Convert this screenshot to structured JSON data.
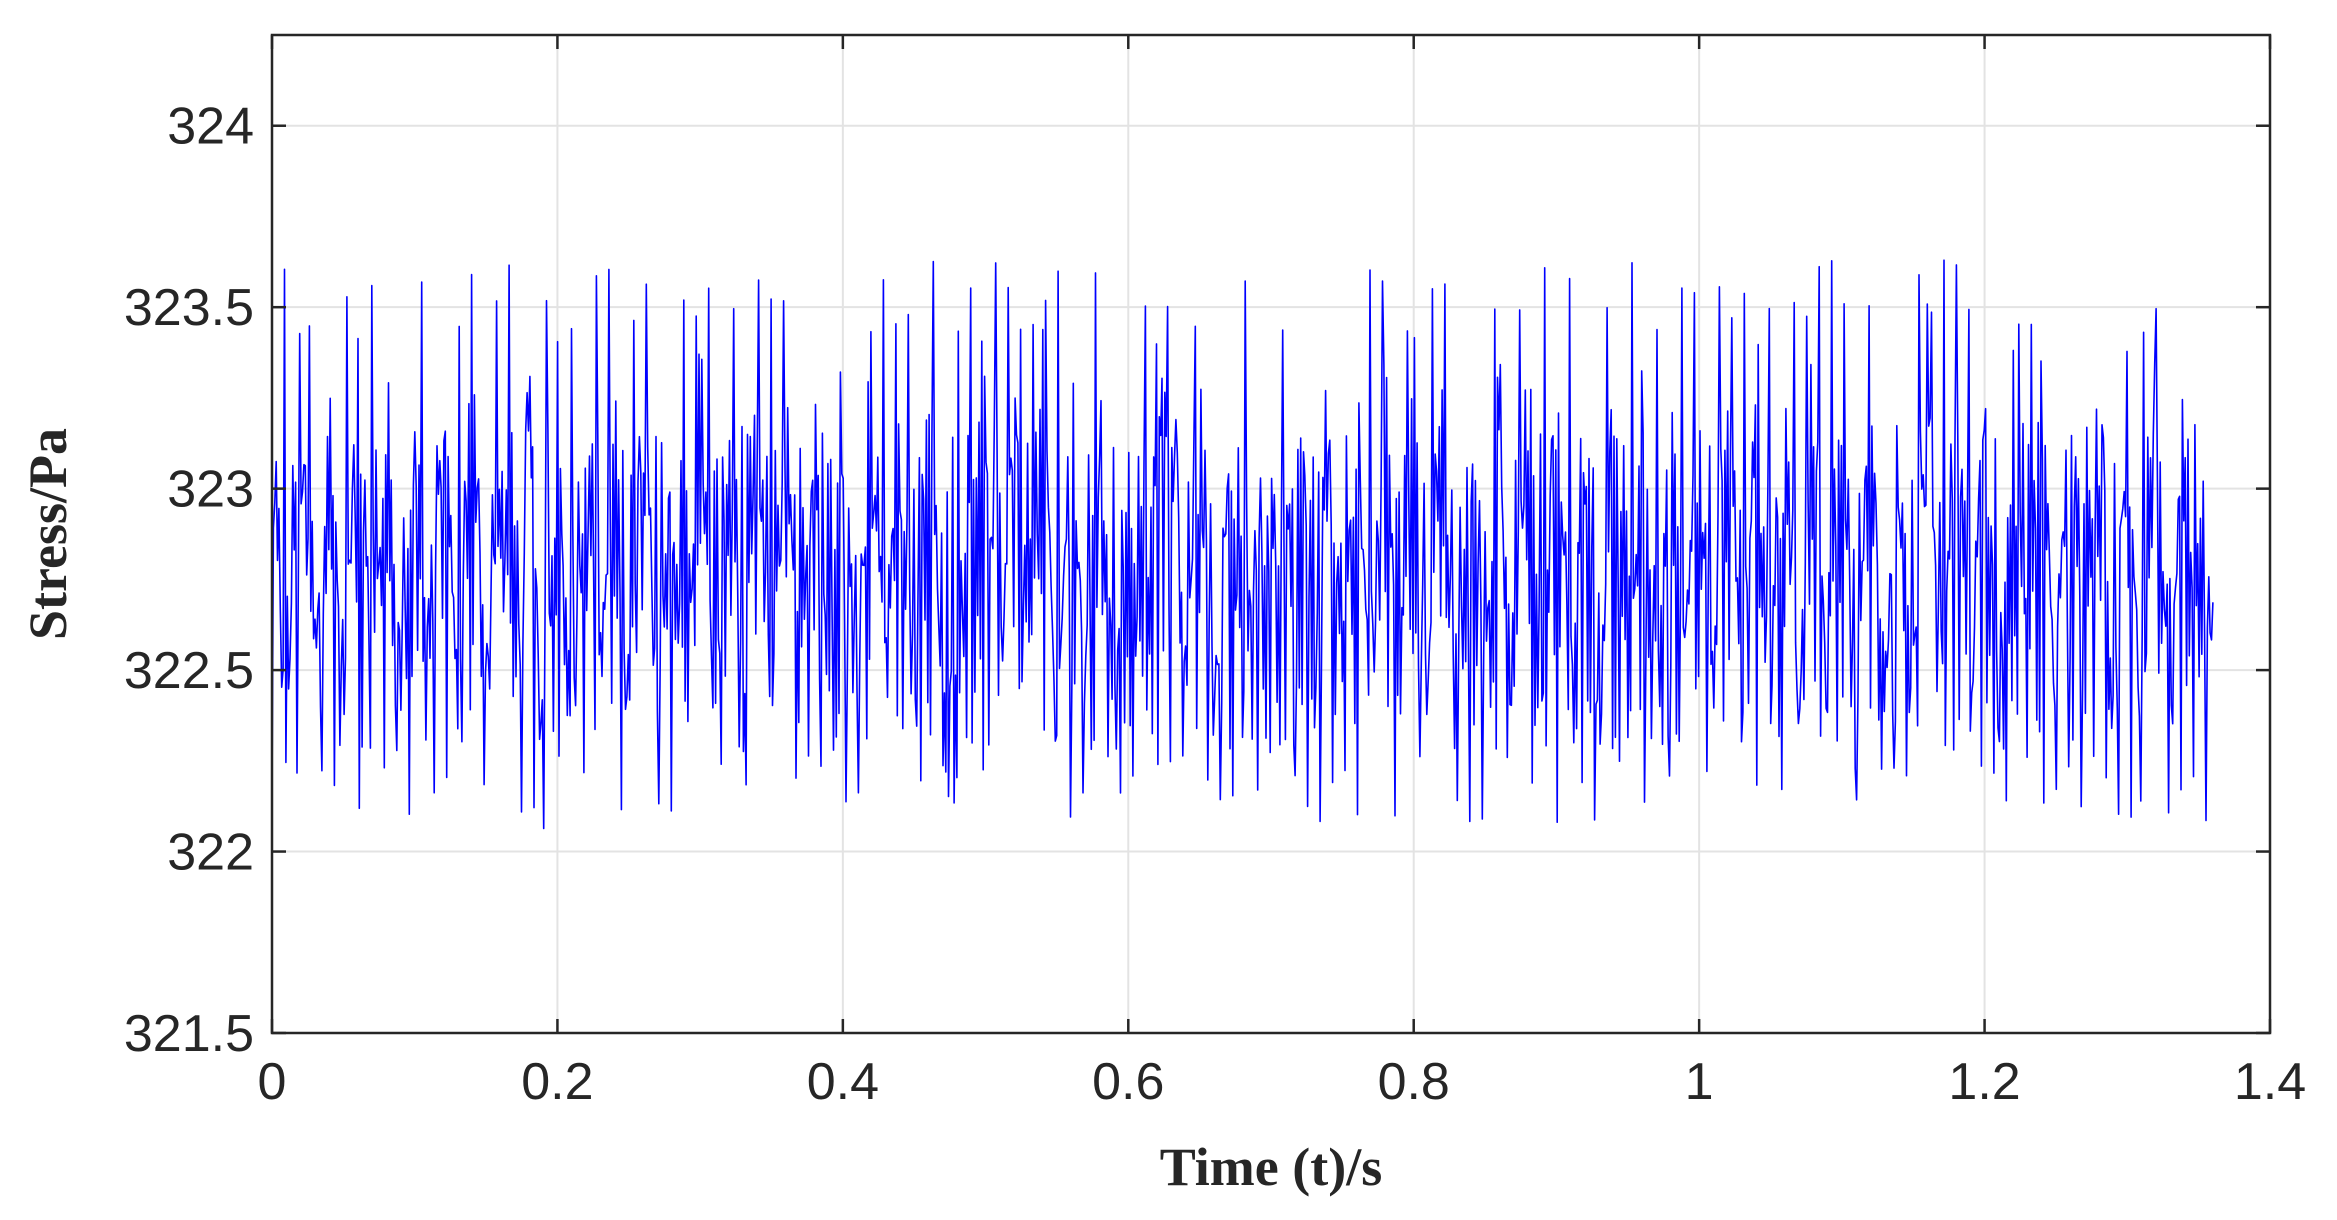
{
  "chart_data": {
    "type": "line",
    "title": "",
    "xlabel": "Time (t)/s",
    "ylabel": "Stress/Pa",
    "xlim": [
      0,
      1.4
    ],
    "ylim": [
      321.5,
      324.25
    ],
    "xticks": [
      0,
      0.2,
      0.4,
      0.6,
      0.8,
      1,
      1.2,
      1.4
    ],
    "xtick_labels": [
      "0",
      "0.2",
      "0.4",
      "0.6",
      "0.8",
      "1",
      "1.2",
      "1.4"
    ],
    "yticks": [
      321.5,
      322,
      322.5,
      323,
      323.5,
      324
    ],
    "ytick_labels": [
      "321.5",
      "322",
      "322.5",
      "323",
      "323.5",
      "324"
    ],
    "grid": true,
    "series": [
      {
        "color": "#0000ff",
        "x_range": [
          0,
          1.36
        ],
        "baseline": 322.73,
        "y_max": 323.69,
        "y_min": 322.0,
        "x": [
          0,
          0.01,
          0.02,
          0.03,
          0.04,
          0.05,
          0.06,
          0.07,
          0.08,
          0.09,
          0.1,
          0.11,
          0.12,
          0.13,
          0.14,
          0.15,
          0.16,
          0.17,
          0.18,
          0.19,
          0.2,
          0.21,
          0.22,
          0.23,
          0.24,
          0.25,
          0.26,
          0.27,
          0.28,
          0.29,
          0.3,
          0.31,
          0.32,
          0.33,
          0.34,
          0.35,
          0.36,
          0.37,
          0.38,
          0.39,
          0.4,
          0.41,
          0.42,
          0.43,
          0.44,
          0.45,
          0.46,
          0.47,
          0.48,
          0.49,
          0.5,
          0.51,
          0.52,
          0.53,
          0.54,
          0.55,
          0.56,
          0.57,
          0.58,
          0.59,
          0.6,
          0.61,
          0.62,
          0.63,
          0.64,
          0.65,
          0.66,
          0.67,
          0.68,
          0.69,
          0.7,
          0.71,
          0.72,
          0.73,
          0.74,
          0.75,
          0.76,
          0.77,
          0.78,
          0.79,
          0.8,
          0.81,
          0.82,
          0.83,
          0.84,
          0.85,
          0.86,
          0.87,
          0.88,
          0.89,
          0.9,
          0.91,
          0.92,
          0.93,
          0.94,
          0.95,
          0.96,
          0.97,
          0.98,
          0.99,
          1,
          1.01,
          1.02,
          1.03,
          1.04,
          1.05,
          1.06,
          1.07,
          1.08,
          1.09,
          1.1,
          1.11,
          1.12,
          1.13,
          1.14,
          1.15,
          1.16,
          1.17,
          1.18,
          1.19,
          1.2,
          1.21,
          1.22,
          1.23,
          1.24,
          1.25,
          1.26,
          1.27,
          1.28,
          1.29,
          1.3,
          1.31,
          1.32,
          1.33,
          1.34,
          1.35,
          1.36
        ],
        "y": [
          323.25,
          322.15,
          323.52,
          322.3,
          323.5,
          322.25,
          323.56,
          322.3,
          323.5,
          322.28,
          323.48,
          322.26,
          323.52,
          322.24,
          323.55,
          322.3,
          323.35,
          322.22,
          323.52,
          322.0,
          323.5,
          322.04,
          323.4,
          322.25,
          323.45,
          322.12,
          323.55,
          322.18,
          323.4,
          322.12,
          323.6,
          322.22,
          323.52,
          322.2,
          323.5,
          322.3,
          323.42,
          322.2,
          323.5,
          322.3,
          323.66,
          322.26,
          323.65,
          322.2,
          323.6,
          322.3,
          323.62,
          322.18,
          322.02,
          323.6,
          323.65,
          322.22,
          323.55,
          322.2,
          323.64,
          322.12,
          323.5,
          322.25,
          323.6,
          322.2,
          323.2,
          322.3,
          323.5,
          323.69,
          322.3,
          323.5,
          322.2,
          323.4,
          322.25,
          322.85,
          323.0,
          322.9,
          323.5,
          322.22,
          323.5,
          322.25,
          323.6,
          322.12,
          323.62,
          322.2,
          323.5,
          322.3,
          323.55,
          322.18,
          323.55,
          322.25,
          323.5,
          322.15,
          323.58,
          322.3,
          323.6,
          322.2,
          323.55,
          322.15,
          323.5,
          322.1,
          323.45,
          322.25,
          323.5,
          322.3,
          323.65,
          322.28,
          323.55,
          322.2,
          323.64,
          322.25,
          323.66,
          322.2,
          323.58,
          322.3,
          323.55,
          322.09,
          323.5,
          322.18,
          323.45,
          322.2,
          323.62,
          322.25,
          323.5,
          322.15,
          323.52,
          322.24,
          323.48,
          322.22,
          323.55,
          322.3,
          323.5,
          322.24,
          323.52,
          322.3,
          323.48,
          322.05,
          323.46,
          322.24,
          323.45,
          322.4,
          322.63
        ]
      }
    ]
  }
}
